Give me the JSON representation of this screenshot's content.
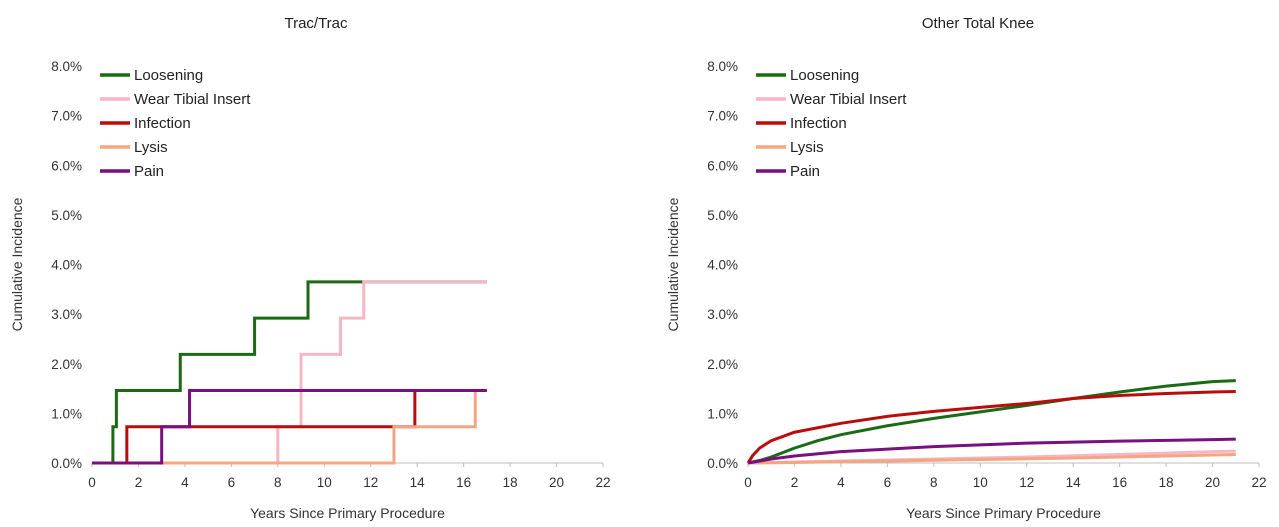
{
  "chart_data": [
    {
      "type": "line",
      "title": "Trac/Trac",
      "xlabel": "Years Since Primary Procedure",
      "ylabel": "Cumulative Incidence",
      "xlim": [
        0,
        22
      ],
      "ylim": [
        0,
        8
      ],
      "xticks": [
        "0",
        "2",
        "4",
        "6",
        "8",
        "10",
        "12",
        "14",
        "16",
        "18",
        "20",
        "22"
      ],
      "yticks": [
        "0.0%",
        "1.0%",
        "2.0%",
        "3.0%",
        "4.0%",
        "5.0%",
        "6.0%",
        "7.0%",
        "8.0%"
      ],
      "legend_position": "top-left",
      "step": true,
      "series": [
        {
          "name": "Loosening",
          "color": "#1a6b14",
          "points": [
            [
              0,
              0
            ],
            [
              0.9,
              0
            ],
            [
              0.9,
              0.73
            ],
            [
              1.05,
              0.73
            ],
            [
              1.05,
              1.46
            ],
            [
              3.8,
              1.46
            ],
            [
              3.8,
              2.19
            ],
            [
              7.0,
              2.19
            ],
            [
              7.0,
              2.92
            ],
            [
              9.3,
              2.92
            ],
            [
              9.3,
              3.65
            ],
            [
              17.0,
              3.65
            ]
          ]
        },
        {
          "name": "Wear Tibial Insert",
          "color": "#f7b6c4",
          "points": [
            [
              0,
              0
            ],
            [
              8.0,
              0
            ],
            [
              8.0,
              0.73
            ],
            [
              9.0,
              0.73
            ],
            [
              9.0,
              2.19
            ],
            [
              10.7,
              2.19
            ],
            [
              10.7,
              2.92
            ],
            [
              11.7,
              2.92
            ],
            [
              11.7,
              3.65
            ],
            [
              17.0,
              3.65
            ]
          ]
        },
        {
          "name": "Infection",
          "color": "#bb0c0c",
          "points": [
            [
              0,
              0
            ],
            [
              1.5,
              0
            ],
            [
              1.5,
              0.73
            ],
            [
              13.9,
              0.73
            ],
            [
              13.9,
              1.46
            ],
            [
              17.0,
              1.46
            ]
          ]
        },
        {
          "name": "Lysis",
          "color": "#f5a582",
          "points": [
            [
              0,
              0
            ],
            [
              13.0,
              0
            ],
            [
              13.0,
              0.73
            ],
            [
              16.5,
              0.73
            ],
            [
              16.5,
              1.46
            ],
            [
              17.0,
              1.46
            ]
          ]
        },
        {
          "name": "Pain",
          "color": "#7a0f7f",
          "points": [
            [
              0,
              0
            ],
            [
              3.0,
              0
            ],
            [
              3.0,
              0.73
            ],
            [
              4.2,
              0.73
            ],
            [
              4.2,
              1.46
            ],
            [
              17.0,
              1.46
            ]
          ]
        }
      ]
    },
    {
      "type": "line",
      "title": "Other Total Knee",
      "xlabel": "Years Since Primary Procedure",
      "ylabel": "Cumulative Incidence",
      "xlim": [
        0,
        22
      ],
      "ylim": [
        0,
        8
      ],
      "xticks": [
        "0",
        "2",
        "4",
        "6",
        "8",
        "10",
        "12",
        "14",
        "16",
        "18",
        "20",
        "22"
      ],
      "yticks": [
        "0.0%",
        "1.0%",
        "2.0%",
        "3.0%",
        "4.0%",
        "5.0%",
        "6.0%",
        "7.0%",
        "8.0%"
      ],
      "legend_position": "top-left",
      "step": false,
      "series": [
        {
          "name": "Loosening",
          "color": "#1a6b14",
          "points": [
            [
              0,
              0
            ],
            [
              0.5,
              0.05
            ],
            [
              1,
              0.12
            ],
            [
              2,
              0.3
            ],
            [
              3,
              0.45
            ],
            [
              4,
              0.57
            ],
            [
              6,
              0.75
            ],
            [
              8,
              0.9
            ],
            [
              10,
              1.03
            ],
            [
              12,
              1.16
            ],
            [
              14,
              1.3
            ],
            [
              16,
              1.43
            ],
            [
              18,
              1.55
            ],
            [
              20,
              1.64
            ],
            [
              21,
              1.66
            ]
          ]
        },
        {
          "name": "Wear Tibial Insert",
          "color": "#f7b6c4",
          "points": [
            [
              0,
              0
            ],
            [
              1,
              0.01
            ],
            [
              4,
              0.04
            ],
            [
              8,
              0.08
            ],
            [
              12,
              0.12
            ],
            [
              16,
              0.17
            ],
            [
              20,
              0.23
            ],
            [
              21,
              0.24
            ]
          ]
        },
        {
          "name": "Infection",
          "color": "#bb0c0c",
          "points": [
            [
              0,
              0
            ],
            [
              0.2,
              0.15
            ],
            [
              0.5,
              0.3
            ],
            [
              1,
              0.45
            ],
            [
              2,
              0.62
            ],
            [
              4,
              0.8
            ],
            [
              6,
              0.94
            ],
            [
              8,
              1.04
            ],
            [
              10,
              1.12
            ],
            [
              12,
              1.2
            ],
            [
              14,
              1.3
            ],
            [
              16,
              1.36
            ],
            [
              18,
              1.4
            ],
            [
              20,
              1.43
            ],
            [
              21,
              1.44
            ]
          ]
        },
        {
          "name": "Lysis",
          "color": "#f5a582",
          "points": [
            [
              0,
              0
            ],
            [
              2,
              0.01
            ],
            [
              6,
              0.04
            ],
            [
              10,
              0.07
            ],
            [
              14,
              0.1
            ],
            [
              18,
              0.14
            ],
            [
              20,
              0.16
            ],
            [
              21,
              0.17
            ]
          ]
        },
        {
          "name": "Pain",
          "color": "#7a0f7f",
          "points": [
            [
              0,
              0
            ],
            [
              0.5,
              0.04
            ],
            [
              1,
              0.08
            ],
            [
              2,
              0.14
            ],
            [
              4,
              0.23
            ],
            [
              8,
              0.33
            ],
            [
              12,
              0.4
            ],
            [
              16,
              0.44
            ],
            [
              20,
              0.47
            ],
            [
              21,
              0.48
            ]
          ]
        }
      ]
    }
  ]
}
